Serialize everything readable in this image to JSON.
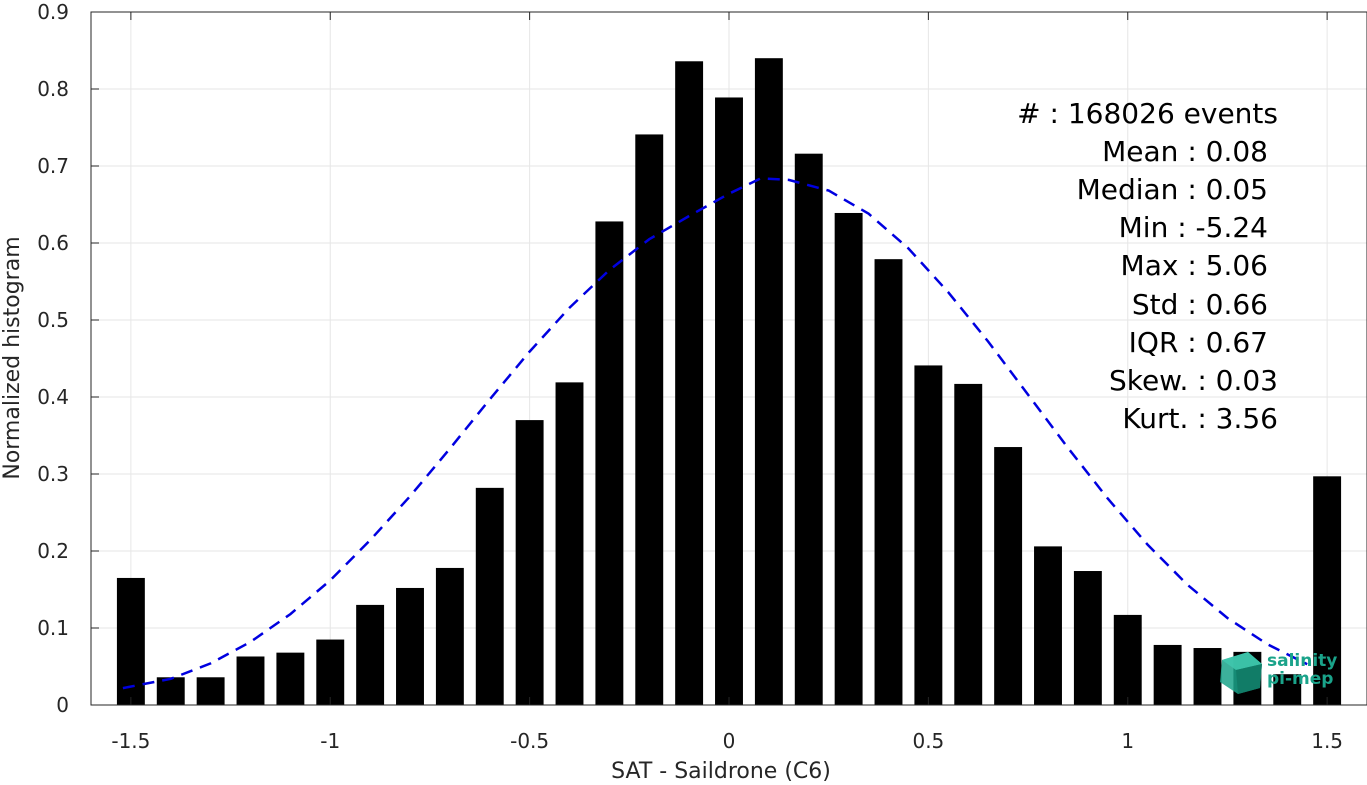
{
  "chart_data": {
    "type": "bar",
    "xlabel": "SAT - Saildrone (C6)",
    "ylabel": "Normalized histogram",
    "xlim": [
      -1.6,
      1.6
    ],
    "ylim": [
      0,
      0.9
    ],
    "grid": true,
    "x_ticks": [
      -1.5,
      -1,
      -0.5,
      0,
      0.5,
      1,
      1.5
    ],
    "x_tick_labels": [
      "-1.5",
      "-1",
      "-0.5",
      "0",
      "0.5",
      "1",
      "1.5"
    ],
    "y_ticks": [
      0,
      0.1,
      0.2,
      0.3,
      0.4,
      0.5,
      0.6,
      0.7,
      0.8,
      0.9
    ],
    "y_tick_labels": [
      "0",
      "0.1",
      "0.2",
      "0.3",
      "0.4",
      "0.5",
      "0.6",
      "0.7",
      "0.8",
      "0.9"
    ],
    "bar_width": 0.07,
    "series": [
      {
        "type": "bar",
        "color": "#000000",
        "x": [
          -1.5,
          -1.4,
          -1.3,
          -1.2,
          -1.1,
          -1.0,
          -0.9,
          -0.8,
          -0.7,
          -0.6,
          -0.5,
          -0.4,
          -0.3,
          -0.2,
          -0.1,
          0.0,
          0.1,
          0.2,
          0.3,
          0.4,
          0.5,
          0.6,
          0.7,
          0.8,
          0.9,
          1.0,
          1.1,
          1.2,
          1.3,
          1.4,
          1.5
        ],
        "values": [
          0.165,
          0.036,
          0.036,
          0.063,
          0.068,
          0.085,
          0.13,
          0.152,
          0.178,
          0.282,
          0.37,
          0.419,
          0.628,
          0.741,
          0.836,
          0.789,
          0.84,
          0.716,
          0.639,
          0.579,
          0.441,
          0.417,
          0.335,
          0.206,
          0.174,
          0.117,
          0.078,
          0.074,
          0.069,
          0.04,
          0.297
        ]
      },
      {
        "type": "line",
        "style": "dashed",
        "color": "#0000e0",
        "x": [
          -1.52,
          -1.4,
          -1.3,
          -1.2,
          -1.1,
          -1.0,
          -0.9,
          -0.8,
          -0.7,
          -0.6,
          -0.5,
          -0.4,
          -0.3,
          -0.2,
          -0.1,
          0.0,
          0.08,
          0.15,
          0.25,
          0.35,
          0.45,
          0.55,
          0.65,
          0.75,
          0.85,
          0.95,
          1.05,
          1.15,
          1.25,
          1.35,
          1.45
        ],
        "values": [
          0.022,
          0.034,
          0.054,
          0.082,
          0.118,
          0.162,
          0.214,
          0.271,
          0.333,
          0.397,
          0.459,
          0.516,
          0.565,
          0.605,
          0.635,
          0.664,
          0.684,
          0.682,
          0.668,
          0.638,
          0.593,
          0.536,
          0.472,
          0.403,
          0.334,
          0.268,
          0.208,
          0.156,
          0.113,
          0.079,
          0.053
        ]
      }
    ],
    "annotations": [
      "#  : 168026 events",
      "Mean : 0.08",
      "Median : 0.05",
      "Min : -5.24",
      "Max : 5.06",
      "Std : 0.66",
      "IQR : 0.67",
      "Skew. : 0.03",
      "Kurt. : 3.56"
    ]
  },
  "logo": {
    "line1": "salinity",
    "line2": "pi-mep",
    "color": "#1aa38a"
  }
}
